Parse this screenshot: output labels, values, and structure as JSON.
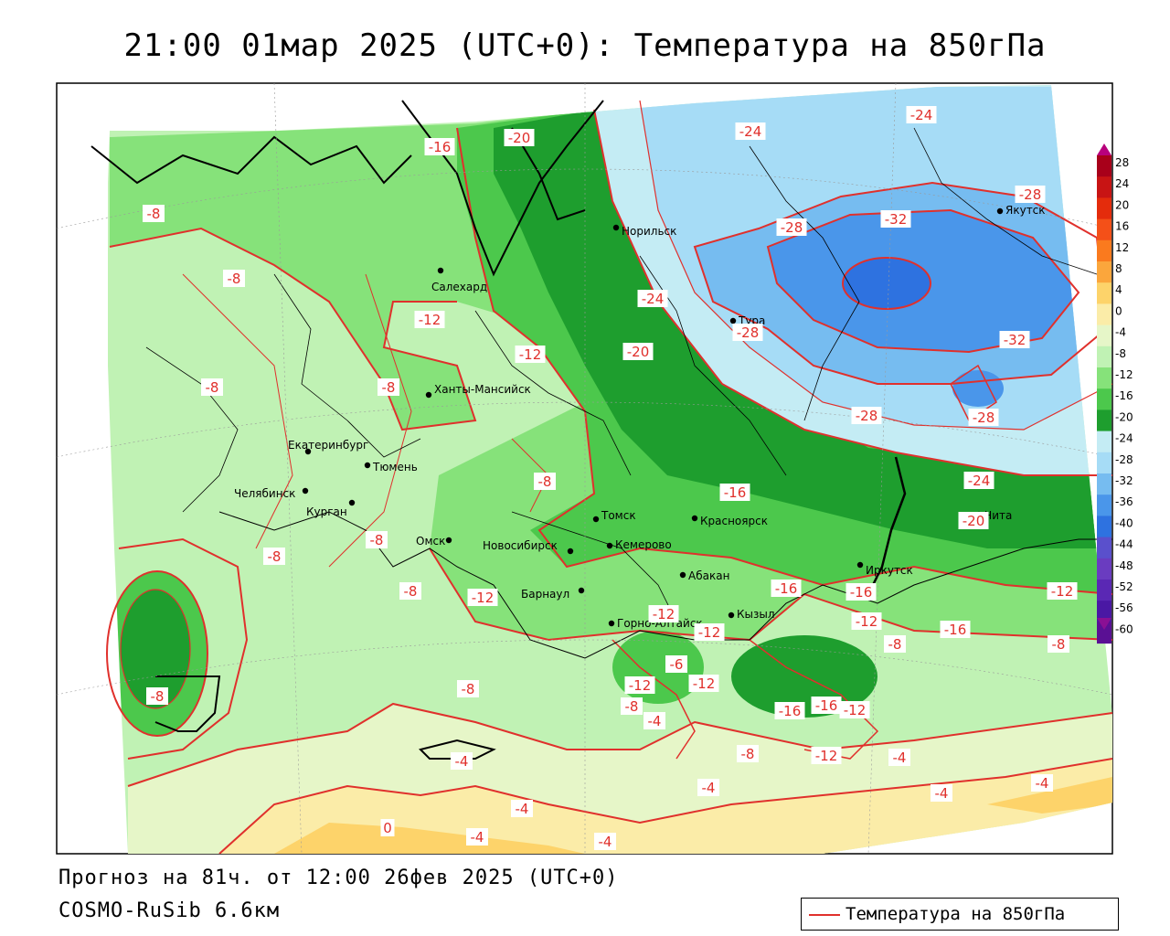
{
  "title": "21:00 01мар 2025 (UTC+0): Температура на 850гПа",
  "footer": {
    "forecast": "Прогноз на 81ч. от 12:00 26фев 2025 (UTC+0)",
    "model": "COSMO-RuSib 6.6км"
  },
  "legend": {
    "label": "Температура на 850гПа",
    "line_color": "#e0302c"
  },
  "colorbar": {
    "levels": [
      "28",
      "24",
      "20",
      "16",
      "12",
      "8",
      "4",
      "0",
      "-4",
      "-8",
      "-12",
      "-16",
      "-20",
      "-24",
      "-28",
      "-32",
      "-36",
      "-40",
      "-44",
      "-48",
      "-52",
      "-56",
      "-60"
    ],
    "colors": [
      "#a8001a",
      "#c81414",
      "#e42c0c",
      "#f45018",
      "#fa7a1e",
      "#fba63c",
      "#fdd36a",
      "#fbeca8",
      "#e6f6c8",
      "#c0f2b4",
      "#86e27a",
      "#4cc84c",
      "#1e9e2e",
      "#c4ecf4",
      "#a6dcf6",
      "#76bcf0",
      "#4a96ea",
      "#2e72e0",
      "#5a50cc",
      "#6a3cc0",
      "#5a28b4",
      "#4a18a4",
      "#5a1094"
    ]
  },
  "cities": [
    {
      "name": "Норильск"
    },
    {
      "name": "Салехард"
    },
    {
      "name": "Тура"
    },
    {
      "name": "Якутск"
    },
    {
      "name": "Ханты-Мансийск"
    },
    {
      "name": "Екатеринбург"
    },
    {
      "name": "Тюмень"
    },
    {
      "name": "Челябинск"
    },
    {
      "name": "Курган"
    },
    {
      "name": "Омск"
    },
    {
      "name": "Томск"
    },
    {
      "name": "Красноярск"
    },
    {
      "name": "Новосибирск"
    },
    {
      "name": "Кемерово"
    },
    {
      "name": "Барнаул"
    },
    {
      "name": "Абакан"
    },
    {
      "name": "Иркутск"
    },
    {
      "name": "Чита"
    },
    {
      "name": "Горно-Алтайск"
    },
    {
      "name": "Кызыл"
    }
  ],
  "isolines": [
    {
      "value": "-16"
    },
    {
      "value": "-20"
    },
    {
      "value": "-24"
    },
    {
      "value": "-24"
    },
    {
      "value": "-28"
    },
    {
      "value": "-28"
    },
    {
      "value": "-8"
    },
    {
      "value": "-8"
    },
    {
      "value": "-12"
    },
    {
      "value": "-12"
    },
    {
      "value": "-8"
    },
    {
      "value": "-8"
    },
    {
      "value": "-24"
    },
    {
      "value": "-20"
    },
    {
      "value": "-28"
    },
    {
      "value": "-32"
    },
    {
      "value": "-32"
    },
    {
      "value": "-28"
    },
    {
      "value": "-28"
    },
    {
      "value": "-24"
    },
    {
      "value": "-20"
    },
    {
      "value": "-8"
    },
    {
      "value": "-16"
    },
    {
      "value": "-8"
    },
    {
      "value": "-8"
    },
    {
      "value": "-8"
    },
    {
      "value": "-12"
    },
    {
      "value": "-16"
    },
    {
      "value": "-16"
    },
    {
      "value": "-12"
    },
    {
      "value": "-12"
    },
    {
      "value": "-12"
    },
    {
      "value": "-12"
    },
    {
      "value": "-16"
    },
    {
      "value": "-8"
    },
    {
      "value": "-8"
    },
    {
      "value": "-12"
    },
    {
      "value": "-6"
    },
    {
      "value": "-8"
    },
    {
      "value": "-12"
    },
    {
      "value": "-16"
    },
    {
      "value": "-16"
    },
    {
      "value": "-12"
    },
    {
      "value": "-4"
    },
    {
      "value": "-8"
    },
    {
      "value": "-8"
    },
    {
      "value": "-4"
    },
    {
      "value": "-12"
    },
    {
      "value": "-4"
    },
    {
      "value": "-4"
    },
    {
      "value": "-4"
    },
    {
      "value": "-4"
    },
    {
      "value": "-4"
    },
    {
      "value": "0"
    },
    {
      "value": "-4"
    },
    {
      "value": "-4"
    },
    {
      "value": "-8"
    }
  ]
}
